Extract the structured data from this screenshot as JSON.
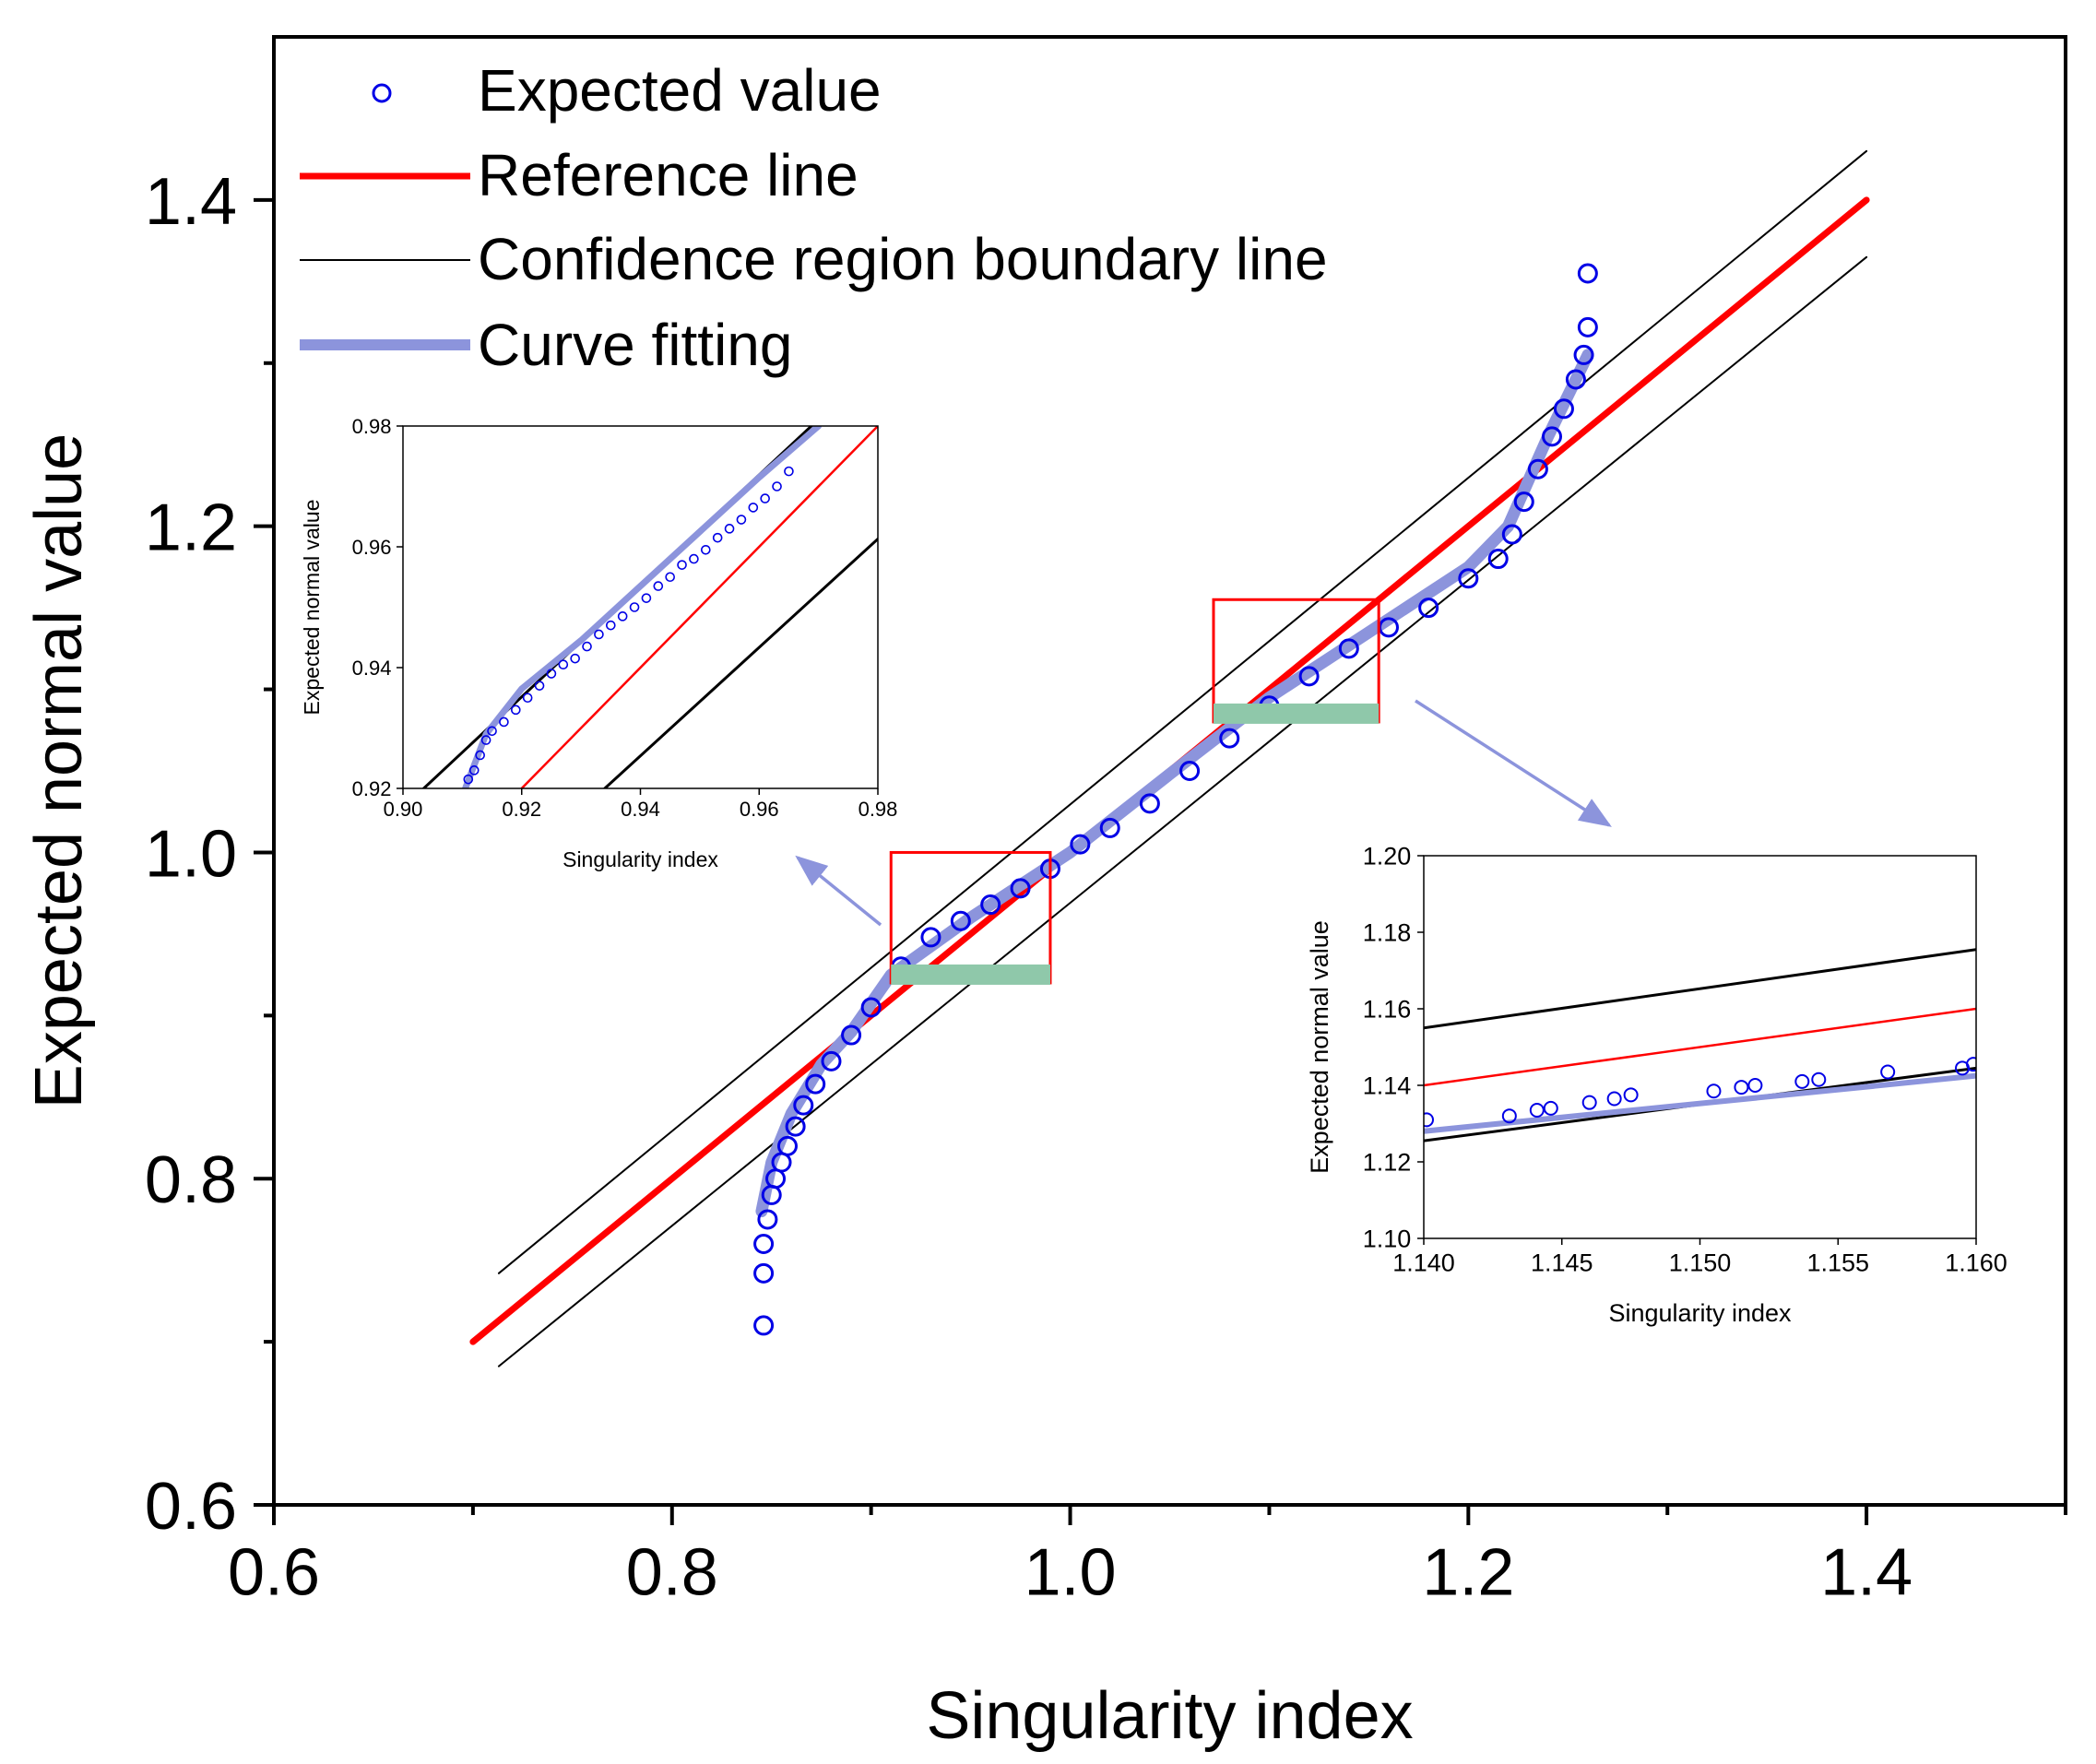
{
  "chart_data": [
    {
      "id": "main",
      "type": "scatter",
      "xlabel": "Singularity index",
      "ylabel": "Expected normal value",
      "xlim": [
        0.6,
        1.5
      ],
      "ylim": [
        0.6,
        1.5
      ],
      "xticks": [
        "0.6",
        "0.8",
        "1.0",
        "1.2",
        "1.4"
      ],
      "yticks": [
        "0.6",
        "0.8",
        "1.0",
        "1.2",
        "1.4"
      ],
      "grid": false,
      "legend_position": "top-left",
      "legend": {
        "expected": "Expected value",
        "reference": "Reference line",
        "confidence": "Confidence region boundary line",
        "fitting": "Curve fitting"
      },
      "series": [
        {
          "name": "Reference line",
          "color": "#ff0000",
          "x": [
            0.7,
            1.4
          ],
          "y": [
            0.7,
            1.4
          ]
        },
        {
          "name": "Confidence region boundary line (upper)",
          "color": "#000000",
          "x": [
            0.713,
            1.4
          ],
          "y": [
            0.742,
            1.43
          ]
        },
        {
          "name": "Confidence region boundary line (lower)",
          "color": "#000000",
          "x": [
            0.713,
            1.4
          ],
          "y": [
            0.685,
            1.365
          ]
        },
        {
          "name": "Curve fitting",
          "color": "#8c94dc",
          "x": [
            0.845,
            0.85,
            0.86,
            0.875,
            0.89,
            0.91,
            0.95,
            1.0,
            1.05,
            1.1,
            1.15,
            1.2,
            1.22,
            1.24,
            1.26
          ],
          "y": [
            0.78,
            0.81,
            0.84,
            0.87,
            0.89,
            0.925,
            0.96,
            1.0,
            1.048,
            1.095,
            1.135,
            1.175,
            1.2,
            1.255,
            1.305
          ]
        },
        {
          "name": "Expected value",
          "color": "#0000e6",
          "marker": "open-circle",
          "x": [
            0.846,
            0.846,
            0.846,
            0.848,
            0.85,
            0.852,
            0.855,
            0.858,
            0.862,
            0.866,
            0.872,
            0.88,
            0.89,
            0.9,
            0.915,
            0.93,
            0.945,
            0.96,
            0.975,
            0.99,
            1.005,
            1.02,
            1.04,
            1.06,
            1.08,
            1.1,
            1.12,
            1.14,
            1.16,
            1.18,
            1.2,
            1.215,
            1.222,
            1.228,
            1.235,
            1.242,
            1.248,
            1.254,
            1.258,
            1.26,
            1.26
          ],
          "y": [
            0.71,
            0.742,
            0.76,
            0.775,
            0.79,
            0.8,
            0.81,
            0.82,
            0.832,
            0.845,
            0.858,
            0.872,
            0.888,
            0.905,
            0.93,
            0.948,
            0.958,
            0.968,
            0.978,
            0.99,
            1.005,
            1.015,
            1.03,
            1.05,
            1.07,
            1.09,
            1.108,
            1.125,
            1.138,
            1.15,
            1.168,
            1.18,
            1.195,
            1.215,
            1.235,
            1.255,
            1.272,
            1.29,
            1.305,
            1.322,
            1.355
          ]
        }
      ]
    },
    {
      "id": "inset_left",
      "type": "scatter",
      "xlabel": "Singularity index",
      "ylabel": "Expected normal value",
      "xlim": [
        0.9,
        0.98
      ],
      "ylim": [
        0.92,
        0.98
      ],
      "xticks": [
        "0.90",
        "0.92",
        "0.94",
        "0.96",
        "0.98"
      ],
      "yticks": [
        "0.92",
        "0.94",
        "0.96",
        "0.98"
      ],
      "series": [
        {
          "name": "Reference line",
          "color": "#ff0000",
          "x": [
            0.92,
            0.98
          ],
          "y": [
            0.92,
            0.98
          ]
        },
        {
          "name": "Confidence upper",
          "color": "#000000",
          "x": [
            0.9035,
            0.97
          ],
          "y": [
            0.92,
            0.9811
          ]
        },
        {
          "name": "Confidence lower",
          "color": "#000000",
          "x": [
            0.934,
            0.98
          ],
          "y": [
            0.92,
            0.9613
          ]
        },
        {
          "name": "Curve fitting",
          "color": "#8c94dc",
          "x": [
            0.9105,
            0.914,
            0.92,
            0.93,
            0.94,
            0.95,
            0.96,
            0.97
          ],
          "y": [
            0.92,
            0.929,
            0.9365,
            0.9445,
            0.9535,
            0.9625,
            0.9715,
            0.98
          ]
        },
        {
          "name": "Expected value",
          "color": "#0000e6",
          "marker": "open-circle",
          "x": [
            0.911,
            0.912,
            0.913,
            0.914,
            0.915,
            0.917,
            0.919,
            0.921,
            0.923,
            0.925,
            0.927,
            0.929,
            0.931,
            0.933,
            0.935,
            0.937,
            0.939,
            0.941,
            0.943,
            0.945,
            0.947,
            0.949,
            0.951,
            0.953,
            0.955,
            0.957,
            0.959,
            0.961,
            0.963,
            0.965
          ],
          "y": [
            0.9215,
            0.923,
            0.9255,
            0.928,
            0.9295,
            0.931,
            0.933,
            0.935,
            0.937,
            0.939,
            0.9405,
            0.9415,
            0.9435,
            0.9455,
            0.947,
            0.9485,
            0.95,
            0.9515,
            0.9535,
            0.955,
            0.957,
            0.958,
            0.9595,
            0.9615,
            0.963,
            0.9645,
            0.9665,
            0.968,
            0.97,
            0.9725
          ]
        }
      ]
    },
    {
      "id": "inset_right",
      "type": "scatter",
      "xlabel": "Singularity index",
      "ylabel": "Expected normal value",
      "xlim": [
        1.14,
        1.16
      ],
      "ylim": [
        1.1,
        1.2
      ],
      "xticks": [
        "1.140",
        "1.145",
        "1.150",
        "1.155",
        "1.160"
      ],
      "yticks": [
        "1.10",
        "1.12",
        "1.14",
        "1.16",
        "1.18",
        "1.20"
      ],
      "series": [
        {
          "name": "Reference line",
          "color": "#ff0000",
          "x": [
            1.14,
            1.16
          ],
          "y": [
            1.14,
            1.16
          ]
        },
        {
          "name": "Confidence upper",
          "color": "#000000",
          "x": [
            1.14,
            1.16
          ],
          "y": [
            1.155,
            1.1755
          ]
        },
        {
          "name": "Confidence lower",
          "color": "#000000",
          "x": [
            1.14,
            1.16
          ],
          "y": [
            1.1255,
            1.1445
          ]
        },
        {
          "name": "Curve fitting",
          "color": "#8c94dc",
          "x": [
            1.14,
            1.16
          ],
          "y": [
            1.128,
            1.1425
          ]
        },
        {
          "name": "Expected value",
          "color": "#0000e6",
          "marker": "open-circle",
          "x": [
            1.1401,
            1.1431,
            1.1441,
            1.1446,
            1.146,
            1.1469,
            1.1475,
            1.1505,
            1.1515,
            1.152,
            1.1537,
            1.1543,
            1.1568,
            1.1595,
            1.1599
          ],
          "y": [
            1.131,
            1.132,
            1.1335,
            1.134,
            1.1355,
            1.1365,
            1.1375,
            1.1385,
            1.1395,
            1.14,
            1.141,
            1.1415,
            1.1435,
            1.1445,
            1.1455
          ]
        }
      ]
    }
  ]
}
